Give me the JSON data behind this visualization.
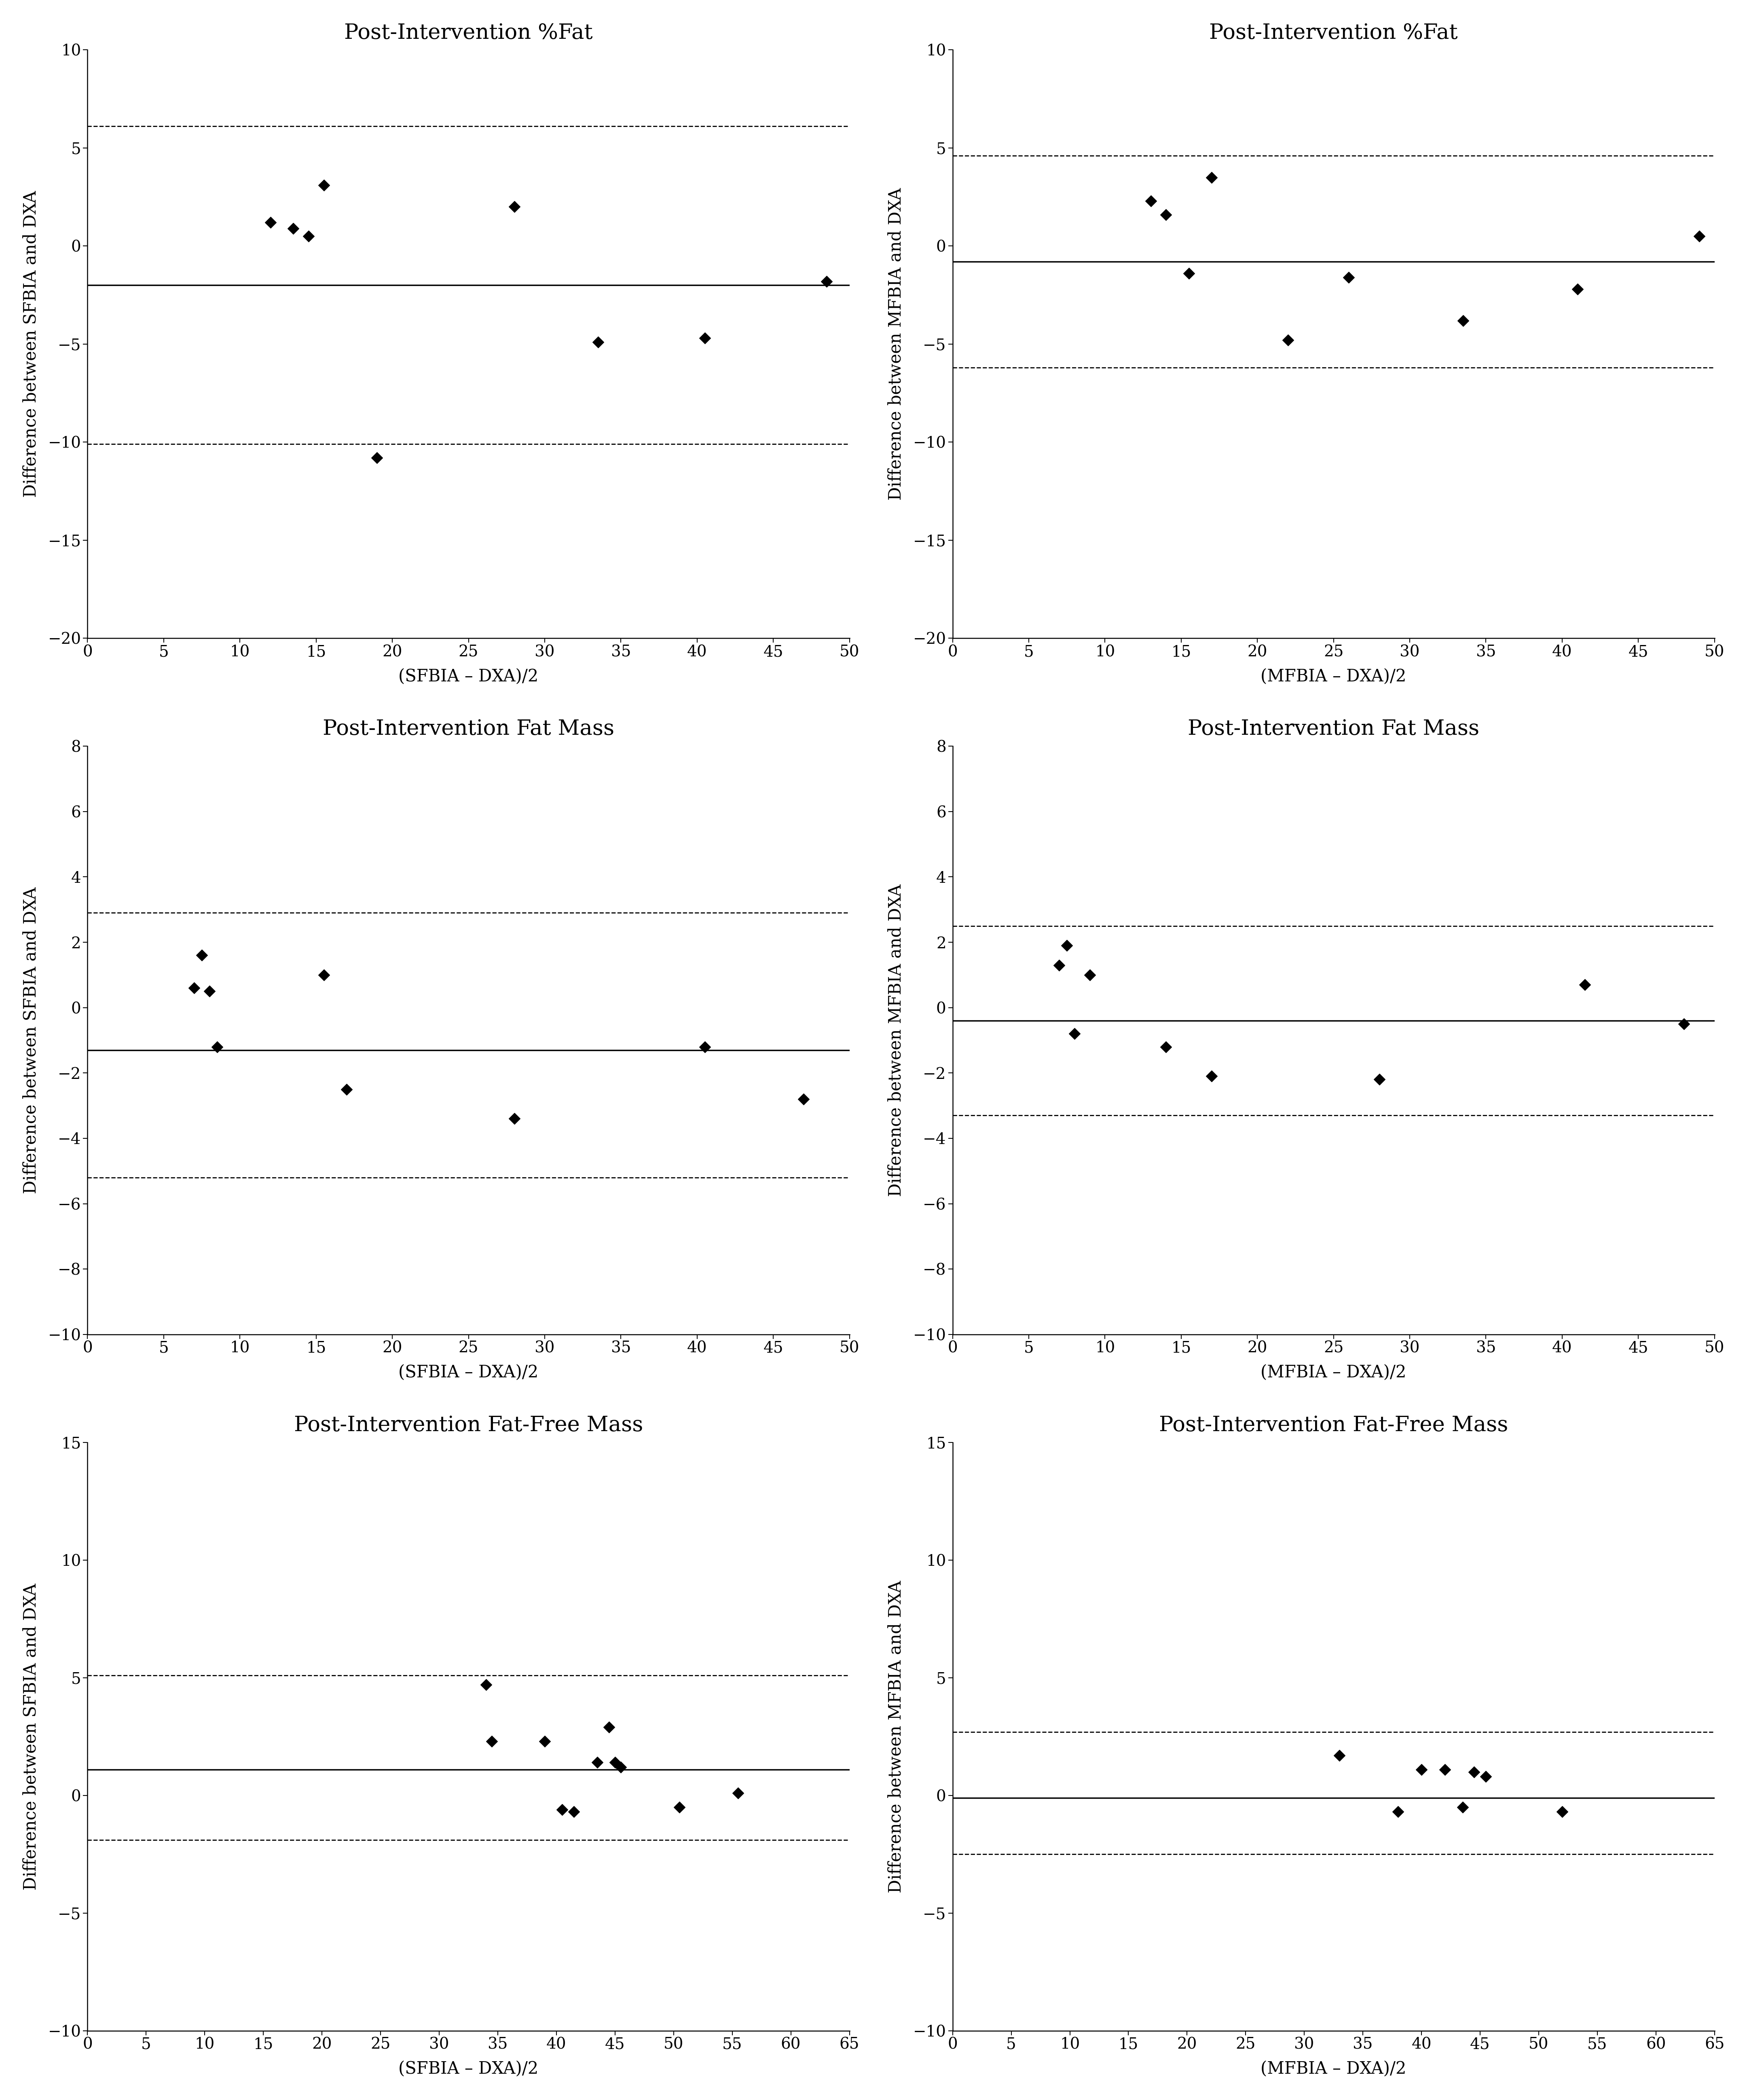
{
  "plots": [
    {
      "title": "Post-Intervention %Fat",
      "ylabel": "Difference between SFBIA and DXA",
      "xlabel": "(SFBIA – DXA)/2",
      "xlim": [
        0,
        50
      ],
      "ylim": [
        -20,
        10
      ],
      "yticks": [
        -20,
        -15,
        -10,
        -5,
        0,
        5,
        10
      ],
      "xticks": [
        0,
        5,
        10,
        15,
        20,
        25,
        30,
        35,
        40,
        45,
        50
      ],
      "mean_line": -2.0,
      "upper_loa": 6.1,
      "lower_loa": -10.1,
      "points_x": [
        12.0,
        13.5,
        14.5,
        15.5,
        19.0,
        28.0,
        33.5,
        40.5,
        48.5
      ],
      "points_y": [
        1.2,
        0.9,
        0.5,
        3.1,
        -10.8,
        2.0,
        -4.9,
        -4.7,
        -1.8
      ]
    },
    {
      "title": "Post-Intervention %Fat",
      "ylabel": "Difference between MFBIA and DXA",
      "xlabel": "(MFBIA – DXA)/2",
      "xlim": [
        0,
        50
      ],
      "ylim": [
        -20,
        10
      ],
      "yticks": [
        -20,
        -15,
        -10,
        -5,
        0,
        5,
        10
      ],
      "xticks": [
        0,
        5,
        10,
        15,
        20,
        25,
        30,
        35,
        40,
        45,
        50
      ],
      "mean_line": -0.8,
      "upper_loa": 4.6,
      "lower_loa": -6.2,
      "points_x": [
        13.0,
        14.0,
        15.5,
        17.0,
        22.0,
        26.0,
        33.5,
        41.0,
        49.0
      ],
      "points_y": [
        2.3,
        1.6,
        -1.4,
        3.5,
        -4.8,
        -1.6,
        -3.8,
        -2.2,
        0.5
      ]
    },
    {
      "title": "Post-Intervention Fat Mass",
      "ylabel": "Difference between SFBIA and DXA",
      "xlabel": "(SFBIA – DXA)/2",
      "xlim": [
        0,
        50
      ],
      "ylim": [
        -10,
        8
      ],
      "yticks": [
        -10,
        -8,
        -6,
        -4,
        -2,
        0,
        2,
        4,
        6,
        8
      ],
      "xticks": [
        0,
        5,
        10,
        15,
        20,
        25,
        30,
        35,
        40,
        45,
        50
      ],
      "mean_line": -1.3,
      "upper_loa": 2.9,
      "lower_loa": -5.2,
      "points_x": [
        7.0,
        7.5,
        8.0,
        8.5,
        15.5,
        17.0,
        28.0,
        40.5,
        47.0
      ],
      "points_y": [
        0.6,
        1.6,
        0.5,
        -1.2,
        1.0,
        -2.5,
        -3.4,
        -1.2,
        -2.8
      ]
    },
    {
      "title": "Post-Intervention Fat Mass",
      "ylabel": "Difference between MFBIA and DXA",
      "xlabel": "(MFBIA – DXA)/2",
      "xlim": [
        0,
        50
      ],
      "ylim": [
        -10,
        8
      ],
      "yticks": [
        -10,
        -8,
        -6,
        -4,
        -2,
        0,
        2,
        4,
        6,
        8
      ],
      "xticks": [
        0,
        5,
        10,
        15,
        20,
        25,
        30,
        35,
        40,
        45,
        50
      ],
      "mean_line": -0.4,
      "upper_loa": 2.5,
      "lower_loa": -3.3,
      "points_x": [
        7.0,
        7.5,
        8.0,
        9.0,
        14.0,
        17.0,
        28.0,
        41.5,
        48.0
      ],
      "points_y": [
        1.3,
        1.9,
        -0.8,
        1.0,
        -1.2,
        -2.1,
        -2.2,
        0.7,
        -0.5
      ]
    },
    {
      "title": "Post-Intervention Fat-Free Mass",
      "ylabel": "Difference between SFBIA and DXA",
      "xlabel": "(SFBIA – DXA)/2",
      "xlim": [
        0,
        65
      ],
      "ylim": [
        -10,
        15
      ],
      "yticks": [
        -10,
        -5,
        0,
        5,
        10,
        15
      ],
      "xticks": [
        0,
        5,
        10,
        15,
        20,
        25,
        30,
        35,
        40,
        45,
        50,
        55,
        60,
        65
      ],
      "mean_line": 1.1,
      "upper_loa": 5.1,
      "lower_loa": -1.9,
      "points_x": [
        34.0,
        34.5,
        39.0,
        40.5,
        41.5,
        43.5,
        44.5,
        45.0,
        45.5,
        50.5,
        55.5
      ],
      "points_y": [
        4.7,
        2.3,
        2.3,
        -0.6,
        -0.7,
        1.4,
        2.9,
        1.4,
        1.2,
        -0.5,
        0.1
      ]
    },
    {
      "title": "Post-Intervention Fat-Free Mass",
      "ylabel": "Difference between MFBIA and DXA",
      "xlabel": "(MFBIA – DXA)/2",
      "xlim": [
        0,
        65
      ],
      "ylim": [
        -10,
        15
      ],
      "yticks": [
        -10,
        -5,
        0,
        5,
        10,
        15
      ],
      "xticks": [
        0,
        5,
        10,
        15,
        20,
        25,
        30,
        35,
        40,
        45,
        50,
        55,
        60,
        65
      ],
      "mean_line": -0.1,
      "upper_loa": 2.7,
      "lower_loa": -2.5,
      "points_x": [
        33.0,
        38.0,
        40.0,
        42.0,
        43.5,
        44.5,
        45.5,
        52.0
      ],
      "points_y": [
        1.7,
        -0.7,
        1.1,
        1.1,
        -0.5,
        1.0,
        0.8,
        -0.7
      ]
    }
  ],
  "figure_bg": "#ffffff",
  "plot_bg": "#ffffff",
  "line_color": "#000000",
  "point_color": "#000000",
  "point_size": 200,
  "point_marker": "D",
  "mean_linewidth": 2.5,
  "loa_linewidth": 2.0,
  "loa_linestyle": "--",
  "font_family": "serif",
  "title_fontsize": 38,
  "label_fontsize": 30,
  "tick_fontsize": 28
}
